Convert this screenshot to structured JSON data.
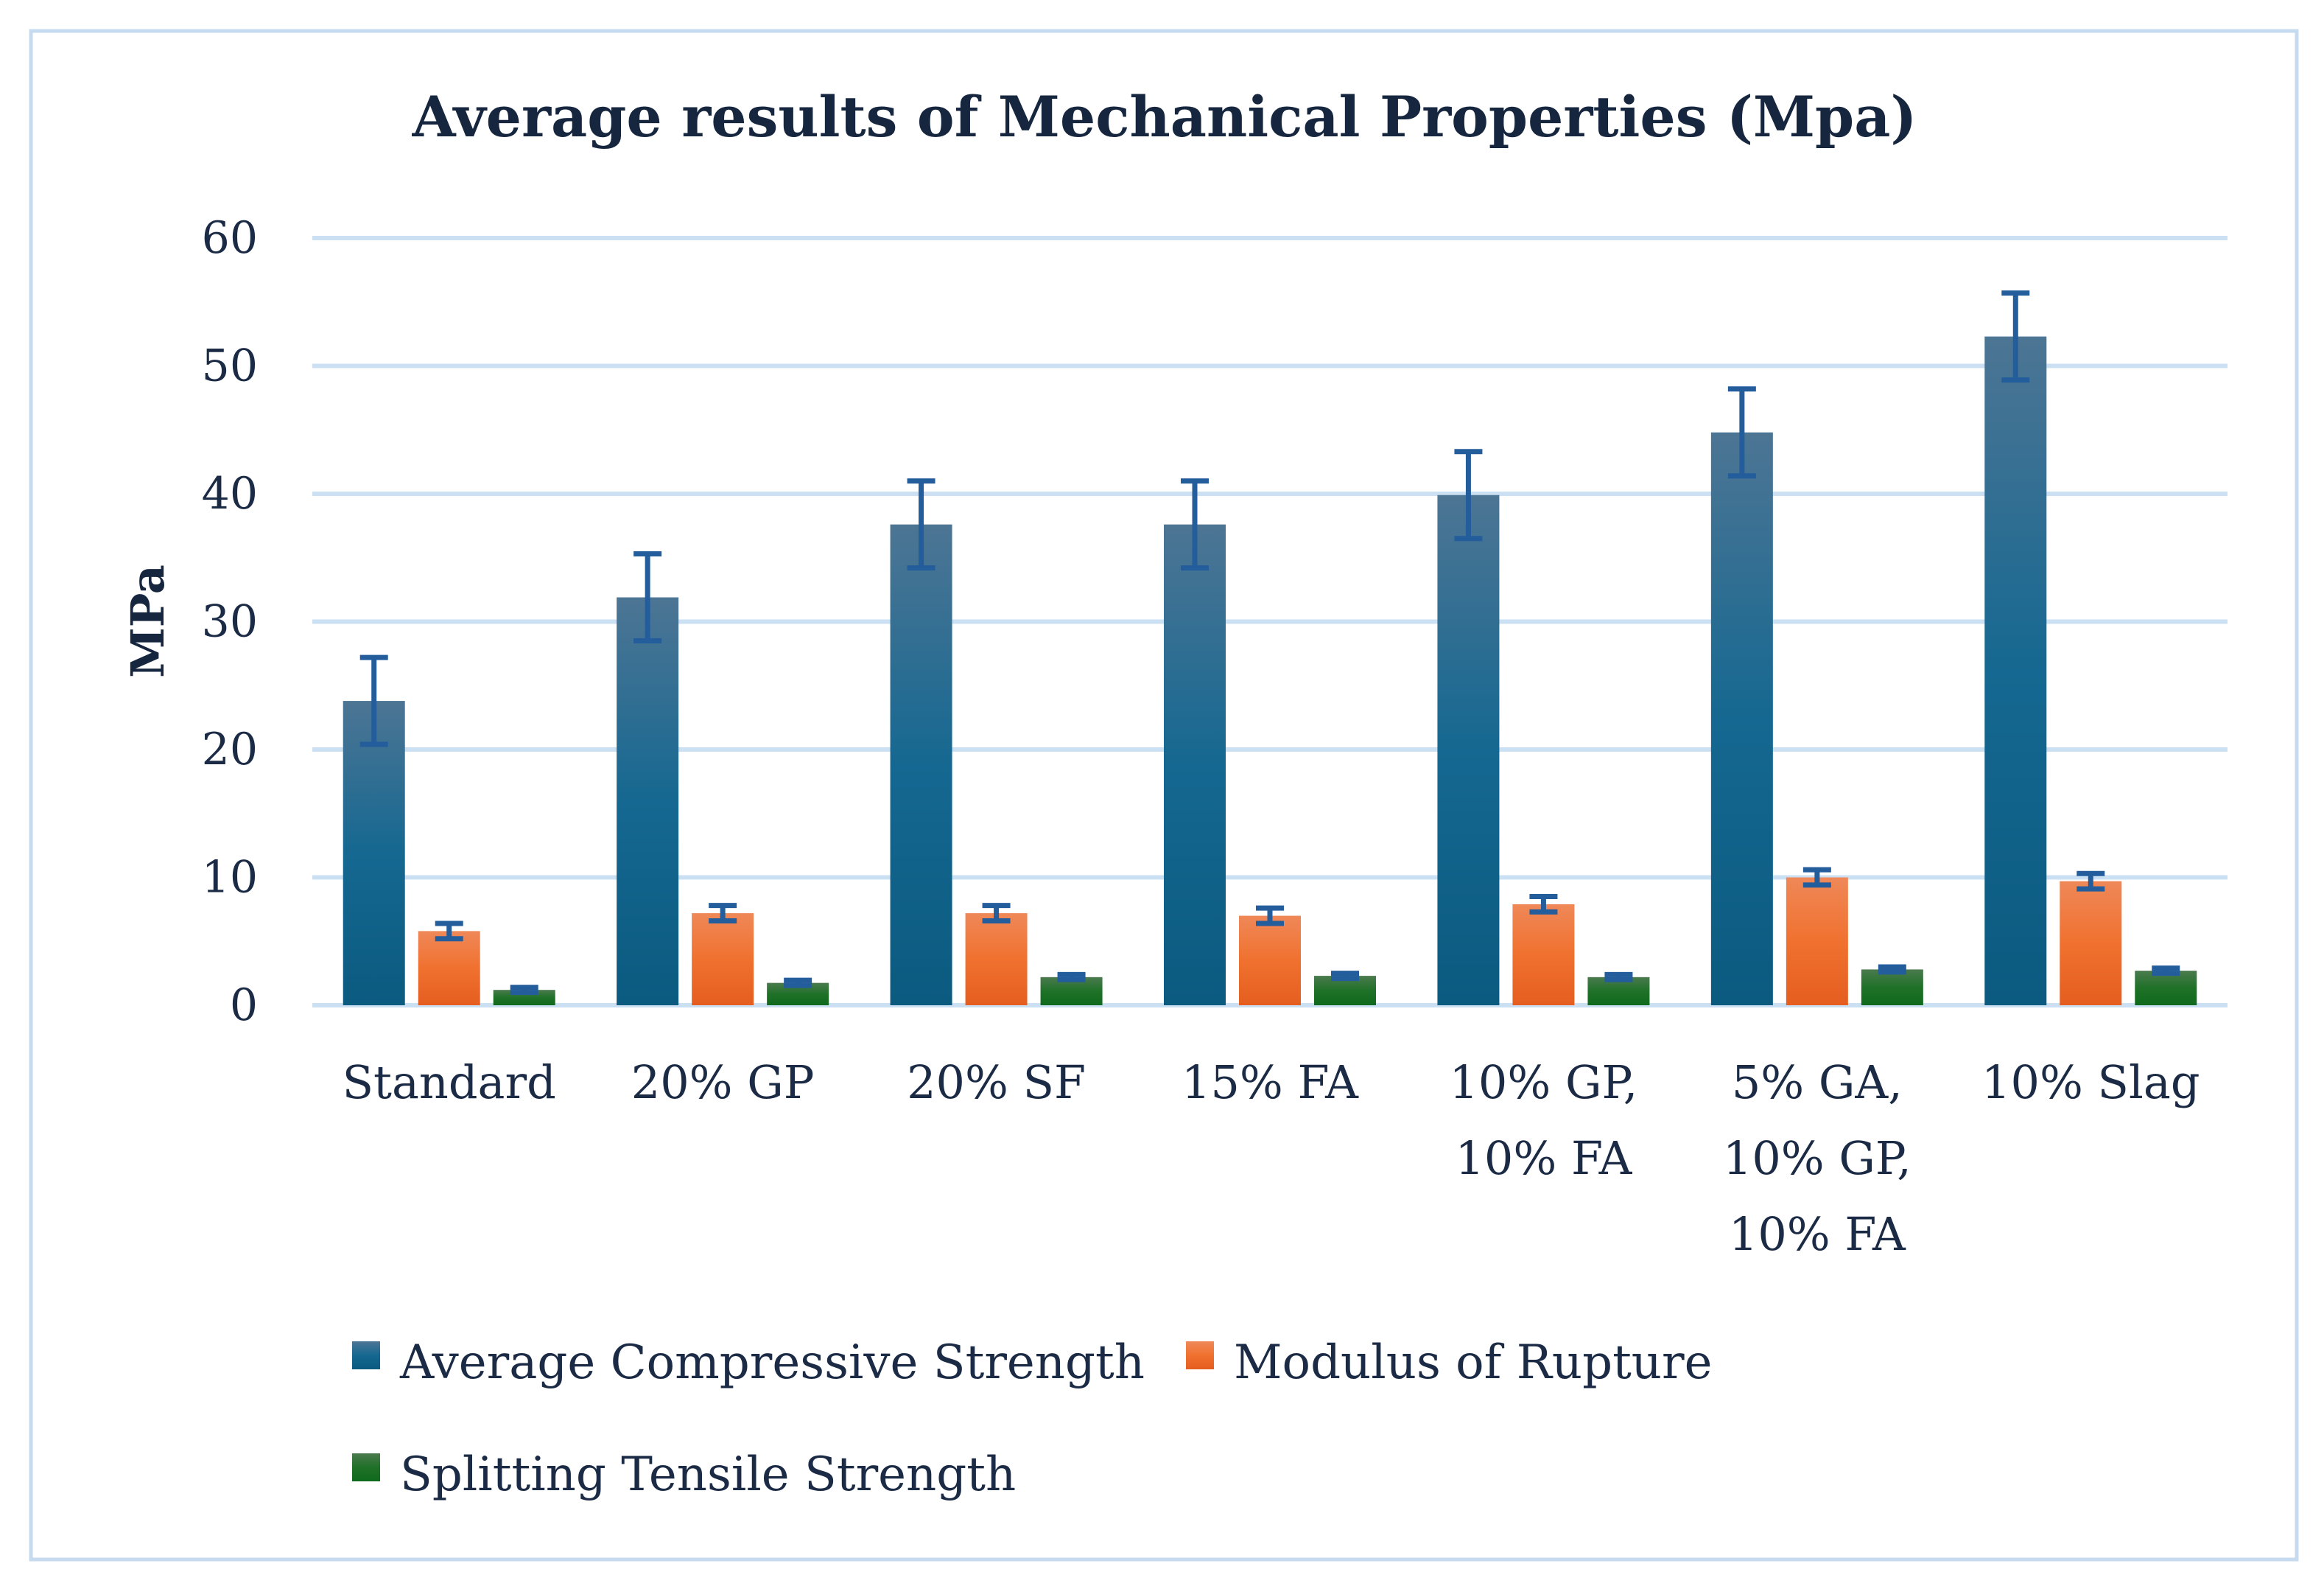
{
  "chart_data": {
    "type": "bar",
    "title": "Average results of Mechanical Properties (Mpa)",
    "xlabel": "",
    "ylabel": "MPa",
    "ylim": [
      0,
      60
    ],
    "yticks": [
      0,
      10,
      20,
      30,
      40,
      50,
      60
    ],
    "grid": true,
    "legend_position": "bottom",
    "categories": [
      [
        "Standard"
      ],
      [
        "20% GP"
      ],
      [
        "20% SF"
      ],
      [
        "15% FA"
      ],
      [
        "10% GP,",
        "10% FA"
      ],
      [
        "5% GA,",
        "10% GP,",
        "10% FA"
      ],
      [
        "10% Slag"
      ]
    ],
    "series": [
      {
        "name": "Average Compressive Strength",
        "color": "#0b5a80",
        "color_top": "#4d7594",
        "values": [
          23.8,
          31.9,
          37.6,
          37.6,
          39.9,
          44.8,
          52.3
        ],
        "error": [
          3.4,
          3.4,
          3.4,
          3.4,
          3.4,
          3.4,
          3.4
        ]
      },
      {
        "name": "Modulus of Rupture",
        "color": "#e55e1f",
        "color_top": "#ef8858",
        "values": [
          5.8,
          7.2,
          7.2,
          7.0,
          7.9,
          10.0,
          9.7
        ],
        "error": [
          0.6,
          0.6,
          0.6,
          0.6,
          0.6,
          0.6,
          0.6
        ]
      },
      {
        "name": "Splitting Tensile Strength",
        "color": "#0f6a1d",
        "color_top": "#4b7a4e",
        "values": [
          1.2,
          1.75,
          2.2,
          2.3,
          2.2,
          2.8,
          2.7
        ],
        "error": [
          0.2,
          0.2,
          0.2,
          0.2,
          0.2,
          0.2,
          0.2
        ]
      }
    ],
    "error_bar_color": "#245d9c",
    "grid_color": "#cce0f4"
  }
}
